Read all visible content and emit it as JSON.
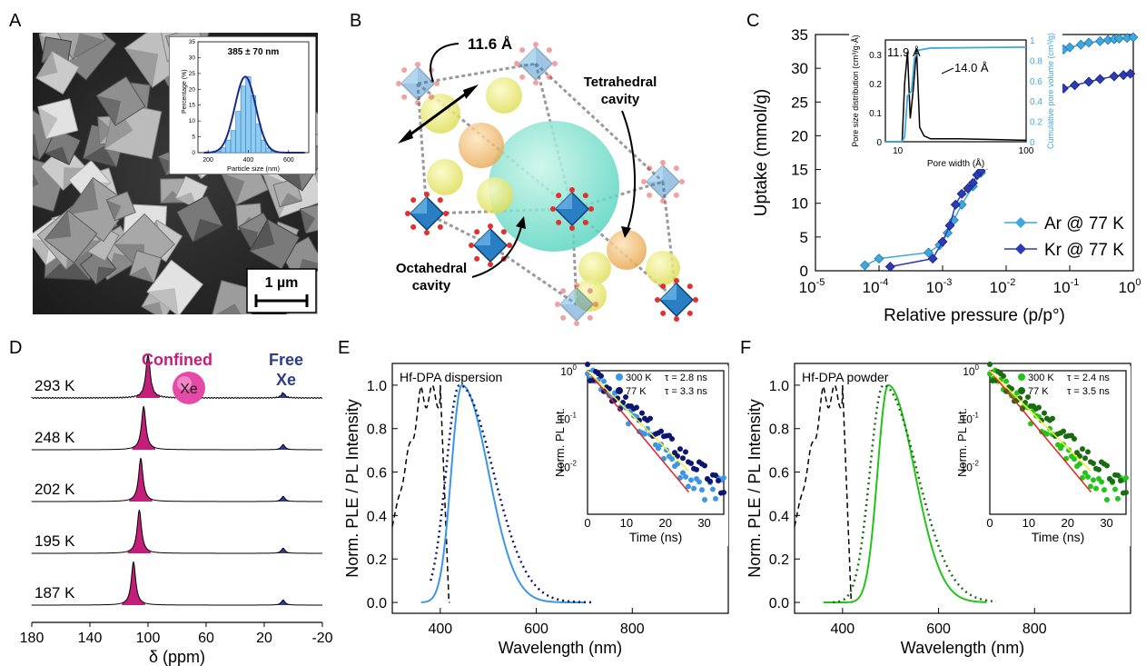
{
  "panel_labels": {
    "a": "A",
    "b": "B",
    "c": "C",
    "d": "D",
    "e": "E",
    "f": "F"
  },
  "panel_a": {
    "scale_bar": "1 µm",
    "inset": {
      "title": "385 ± 70 nm",
      "xlabel": "Particle size (nm)",
      "ylabel": "Percentage (%)",
      "xticks": [
        "200",
        "400",
        "600"
      ],
      "yticks": [
        "0",
        "5",
        "10",
        "15",
        "20",
        "25",
        "30",
        "35"
      ]
    }
  },
  "panel_b": {
    "distance": "11.6 Å",
    "tetrahedral": "Tetrahedral cavity",
    "tetrahedral_l1": "Tetrahedral",
    "tetrahedral_l2": "cavity",
    "octahedral_l1": "Octahedral",
    "octahedral_l2": "cavity"
  },
  "colors": {
    "ar": "#3fa7e0",
    "kr": "#2b3bb8",
    "magenta": "#c21e7a",
    "xe_blue": "#2e3d8f",
    "light_blue": "#3b97e6",
    "navy": "#0d1670",
    "green": "#22c41a",
    "dark_green": "#1b6b12",
    "red": "#e4201e",
    "yellow": "#f3ef3a"
  },
  "chart_data": [
    {
      "id": "C",
      "type": "scatter",
      "xlabel": "Relative pressure (p/p°)",
      "ylabel": "Uptake (mmol/g)",
      "xscale": "log",
      "xlim": [
        1e-05,
        1
      ],
      "ylim": [
        0,
        35
      ],
      "xticklabels": [
        "10",
        "10",
        "10",
        "10",
        "10",
        "10"
      ],
      "xtickexp": [
        "-5",
        "-4",
        "-3",
        "-2",
        "-1",
        "0"
      ],
      "yticks": [
        "0",
        "5",
        "10",
        "15",
        "20",
        "25",
        "30",
        "35"
      ],
      "legend_position": "bottom-right",
      "series": [
        {
          "name": "Ar @ 77 K",
          "x": [
            6e-05,
            0.0001,
            0.0006,
            0.0009,
            0.0012,
            0.0015,
            0.002,
            0.003,
            0.004,
            0.005,
            0.006,
            0.007,
            0.008,
            0.01,
            0.012,
            0.015,
            0.02,
            0.025,
            0.03,
            0.04,
            0.05,
            0.06,
            0.08,
            0.1,
            0.15,
            0.2,
            0.3,
            0.4,
            0.5,
            0.6,
            0.8,
            1.0
          ],
          "y": [
            0.8,
            1.8,
            2.7,
            3.8,
            5.6,
            7.5,
            9.8,
            12.5,
            14.5,
            16.0,
            17.2,
            18.3,
            19.2,
            20.5,
            21.4,
            22.0,
            22.8,
            24.0,
            26.5,
            29.8,
            31.3,
            32.1,
            32.8,
            33.1,
            33.5,
            33.8,
            34.0,
            34.2,
            34.3,
            34.4,
            34.5,
            34.6
          ]
        },
        {
          "name": "Kr @ 77 K",
          "x": [
            0.00015,
            0.0007,
            0.001,
            0.0013,
            0.0016,
            0.002,
            0.0025,
            0.003,
            0.0035,
            0.004,
            0.005,
            0.006,
            0.007,
            0.008,
            0.01,
            0.012,
            0.015,
            0.02,
            0.025,
            0.03,
            0.05,
            0.08,
            0.12,
            0.2,
            0.3,
            0.5,
            0.7,
            0.9
          ],
          "y": [
            0.6,
            1.8,
            4.3,
            6.7,
            9.8,
            11.4,
            12.2,
            13.0,
            14.2,
            14.8,
            15.7,
            16.5,
            17.3,
            18.0,
            19.0,
            20.0,
            21.0,
            22.2,
            23.5,
            24.8,
            26.0,
            27.0,
            27.5,
            28.0,
            28.4,
            28.8,
            29.0,
            29.2
          ]
        }
      ],
      "inset": {
        "xlabel": "Pore width (Å)",
        "ylabel_left": "Pore size distribution (cm³/g·Å)",
        "ylabel_right": "Cumulative pore volume (cm³/g)",
        "xticks": [
          "10",
          "100"
        ],
        "yticks_left": [
          "0",
          "0.1",
          "0.2",
          "0.3"
        ],
        "yticks_right": [
          "0",
          "0.2",
          "0.4",
          "0.6",
          "0.8",
          "1"
        ],
        "annotations": [
          "11.9 Å",
          "14.0 Å"
        ]
      }
    },
    {
      "id": "D",
      "type": "line",
      "xlabel": "δ (ppm)",
      "xticks": [
        "180",
        "140",
        "100",
        "60",
        "20",
        "-20"
      ],
      "xlim": [
        180,
        -20
      ],
      "labels": {
        "confined": "Confined",
        "free_l1": "Free",
        "free_l2": "Xe",
        "xe": "Xe"
      },
      "series": [
        {
          "name": "293 K",
          "confined_ppm": 100,
          "free_ppm": 7
        },
        {
          "name": "248 K",
          "confined_ppm": 103,
          "free_ppm": 7
        },
        {
          "name": "202 K",
          "confined_ppm": 105,
          "free_ppm": 7
        },
        {
          "name": "195 K",
          "confined_ppm": 106,
          "free_ppm": 7
        },
        {
          "name": "187 K",
          "confined_ppm": 110,
          "free_ppm": 7
        }
      ]
    },
    {
      "id": "E",
      "type": "line",
      "title": "Hf-DPA dispersion",
      "xlabel": "Wavelength (nm)",
      "ylabel": "Norm. PLE / PL Intensity",
      "xlim": [
        300,
        1000
      ],
      "ylim": [
        -0.05,
        1.1
      ],
      "xticks": [
        "400",
        "600",
        "800"
      ],
      "yticks": [
        "0.0",
        "0.2",
        "0.4",
        "0.6",
        "0.8",
        "1.0"
      ],
      "ple_peak_nm": 385,
      "pl_peak_nm": 445,
      "pl_dotted_peak_nm": 440,
      "inset": {
        "xlabel": "Time (ns)",
        "ylabel": "Norm. PL Int.",
        "xticks": [
          "0",
          "10",
          "20",
          "30"
        ],
        "yticks": [
          "10",
          "10",
          "10",
          "10"
        ],
        "yexp": [
          "0",
          "-1",
          "-2",
          ""
        ],
        "legend": [
          {
            "name": "300 K",
            "tau": "τ = 2.8 ns"
          },
          {
            "name": "77 K",
            "tau": "τ = 3.3 ns"
          }
        ]
      }
    },
    {
      "id": "F",
      "type": "line",
      "title": "Hf-DPA powder",
      "xlabel": "Wavelength (nm)",
      "ylabel": "Norm. PLE / PL Intensity",
      "xlim": [
        300,
        1000
      ],
      "ylim": [
        -0.05,
        1.1
      ],
      "xticks": [
        "400",
        "600",
        "800"
      ],
      "yticks": [
        "0.0",
        "0.2",
        "0.4",
        "0.6",
        "0.8",
        "1.0"
      ],
      "ple_peak_nm": 385,
      "pl_peak_nm": 495,
      "pl_dotted_peak_nm": 485,
      "inset": {
        "xlabel": "Time (ns)",
        "ylabel": "Norm. PL Int.",
        "xticks": [
          "0",
          "10",
          "20",
          "30"
        ],
        "legend": [
          {
            "name": "300 K",
            "tau": "τ = 2.4 ns"
          },
          {
            "name": "77 K",
            "tau": "τ = 3.5 ns"
          }
        ]
      }
    }
  ]
}
